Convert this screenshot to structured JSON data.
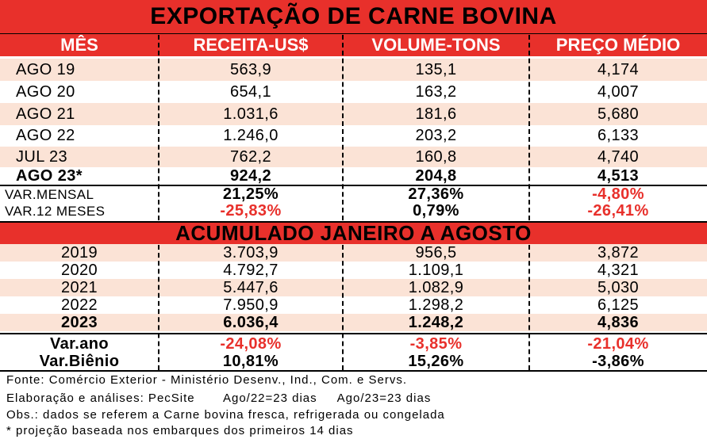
{
  "title": "EXPORTAÇÃO DE CARNE BOVINA",
  "headers": [
    "MÊS",
    "RECEITA-US$",
    "VOLUME-TONS",
    "PREÇO MÉDIO"
  ],
  "monthly": [
    {
      "mes": "AGO 19",
      "receita": "563,9",
      "volume": "135,1",
      "preco": "4,174"
    },
    {
      "mes": "AGO 20",
      "receita": "654,1",
      "volume": "163,2",
      "preco": "4,007"
    },
    {
      "mes": "AGO 21",
      "receita": "1.031,6",
      "volume": "181,6",
      "preco": "5,680"
    },
    {
      "mes": "AGO 22",
      "receita": "1.246,0",
      "volume": "203,2",
      "preco": "6,133"
    },
    {
      "mes": "JUL 23",
      "receita": "762,2",
      "volume": "160,8",
      "preco": "4,740"
    },
    {
      "mes": "AGO 23*",
      "receita": "924,2",
      "volume": "204,8",
      "preco": "4,513"
    }
  ],
  "var_mensal": {
    "label": "VAR.MENSAL",
    "receita": "21,25%",
    "volume": "27,36%",
    "preco": "-4,80%"
  },
  "var_12": {
    "label": "VAR.12 MESES",
    "receita": "-25,83%",
    "volume": "0,79%",
    "preco": "-26,41%"
  },
  "acumulado_title": "ACUMULADO JANEIRO A AGOSTO",
  "yearly": [
    {
      "ano": "2019",
      "receita": "3.703,9",
      "volume": "956,5",
      "preco": "3,872"
    },
    {
      "ano": "2020",
      "receita": "4.792,7",
      "volume": "1.109,1",
      "preco": "4,321"
    },
    {
      "ano": "2021",
      "receita": "5.447,6",
      "volume": "1.082,9",
      "preco": "5,030"
    },
    {
      "ano": "2022",
      "receita": "7.950,9",
      "volume": "1.298,2",
      "preco": "6,125"
    },
    {
      "ano": "2023",
      "receita": "6.036,4",
      "volume": "1.248,2",
      "preco": "4,836"
    }
  ],
  "var_ano": {
    "label": "Var.ano",
    "receita": "-24,08%",
    "volume": "-3,85%",
    "preco": "-21,04%"
  },
  "var_bienio": {
    "label": "Var.Biênio",
    "receita": "10,81%",
    "volume": "15,26%",
    "preco": "-3,86%"
  },
  "notes": [
    "Fonte: Comércio Exterior - Ministério Desenv., Ind., Com. e Servs.",
    "Elaboração e análises: PecSite       Ago/22=23 dias     Ago/23=23 dias",
    "Obs.: dados se referem a Carne bovina fresca, refrigerada ou congelada",
    "* projeção baseada nos embarques dos primeiros 14 dias"
  ],
  "colors": {
    "red": "#e8302b",
    "peach": "#fbe3d6"
  }
}
